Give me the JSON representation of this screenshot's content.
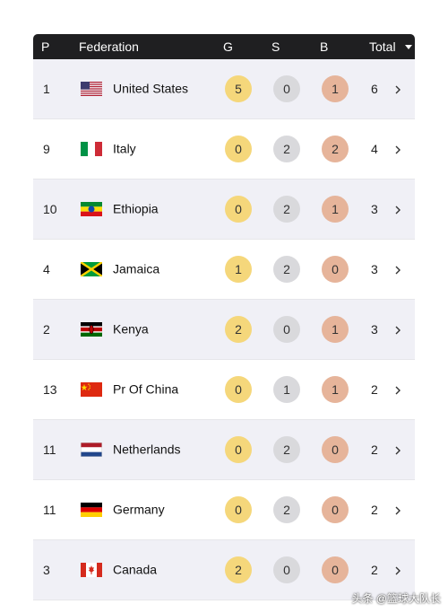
{
  "header": {
    "position": "P",
    "federation": "Federation",
    "gold": "G",
    "silver": "S",
    "bronze": "B",
    "total": "Total"
  },
  "rows": [
    {
      "pos": "1",
      "name": "United States",
      "flag": "usa-flag-icon",
      "gold": "5",
      "silver": "0",
      "bronze": "1",
      "total": "6"
    },
    {
      "pos": "9",
      "name": "Italy",
      "flag": "italy-flag-icon",
      "gold": "0",
      "silver": "2",
      "bronze": "2",
      "total": "4"
    },
    {
      "pos": "10",
      "name": "Ethiopia",
      "flag": "ethiopia-flag-icon",
      "gold": "0",
      "silver": "2",
      "bronze": "1",
      "total": "3"
    },
    {
      "pos": "4",
      "name": "Jamaica",
      "flag": "jamaica-flag-icon",
      "gold": "1",
      "silver": "2",
      "bronze": "0",
      "total": "3"
    },
    {
      "pos": "2",
      "name": "Kenya",
      "flag": "kenya-flag-icon",
      "gold": "2",
      "silver": "0",
      "bronze": "1",
      "total": "3"
    },
    {
      "pos": "13",
      "name": "Pr Of China",
      "flag": "china-flag-icon",
      "gold": "0",
      "silver": "1",
      "bronze": "1",
      "total": "2"
    },
    {
      "pos": "11",
      "name": "Netherlands",
      "flag": "netherlands-flag-icon",
      "gold": "0",
      "silver": "2",
      "bronze": "0",
      "total": "2"
    },
    {
      "pos": "11",
      "name": "Germany",
      "flag": "germany-flag-icon",
      "gold": "0",
      "silver": "2",
      "bronze": "0",
      "total": "2"
    },
    {
      "pos": "3",
      "name": "Canada",
      "flag": "canada-flag-icon",
      "gold": "2",
      "silver": "0",
      "bronze": "0",
      "total": "2"
    }
  ],
  "watermark": "头条 @篮球大队长",
  "colors": {
    "header_bg": "#1f1f21",
    "alt_row_bg": "#f0f0f6",
    "gold": "#f5d77b",
    "silver": "#d9d9dc",
    "bronze": "#e6b49a"
  }
}
